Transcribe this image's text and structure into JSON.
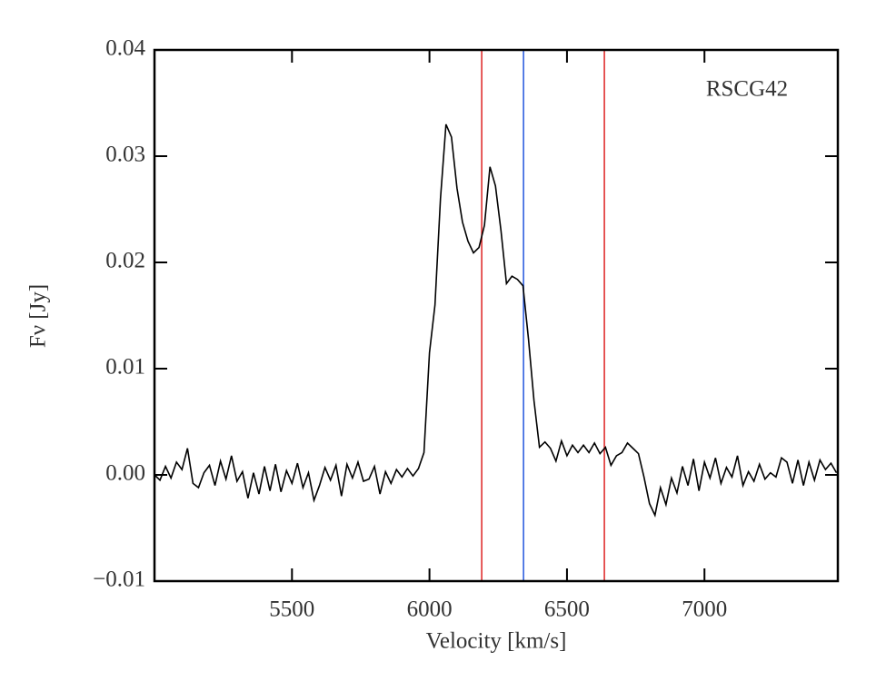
{
  "chart_data": {
    "type": "line",
    "annotation": "RSCG42",
    "x_label": "Velocity [km/s]",
    "y_label": "Fν [Jy]",
    "xlim": [
      5000,
      7485
    ],
    "ylim": [
      -0.01,
      0.04
    ],
    "xticks": [
      5500,
      6000,
      6500,
      7000
    ],
    "yticks": [
      {
        "value": -0.01,
        "label": "−0.01"
      },
      {
        "value": 0,
        "label": "0.00"
      },
      {
        "value": 0.01,
        "label": "0.01"
      },
      {
        "value": 0.02,
        "label": "0.02"
      },
      {
        "value": 0.03,
        "label": "0.03"
      },
      {
        "value": 0.04,
        "label": "0.04"
      }
    ],
    "x": [
      5000,
      5020,
      5040,
      5060,
      5080,
      5100,
      5120,
      5140,
      5160,
      5180,
      5200,
      5220,
      5240,
      5260,
      5280,
      5300,
      5320,
      5340,
      5360,
      5380,
      5400,
      5420,
      5440,
      5460,
      5480,
      5500,
      5520,
      5540,
      5560,
      5580,
      5600,
      5620,
      5640,
      5660,
      5680,
      5700,
      5720,
      5740,
      5760,
      5780,
      5800,
      5820,
      5840,
      5860,
      5880,
      5900,
      5920,
      5940,
      5960,
      5980,
      6000,
      6020,
      6040,
      6060,
      6080,
      6100,
      6120,
      6140,
      6160,
      6180,
      6200,
      6220,
      6240,
      6260,
      6280,
      6300,
      6320,
      6340,
      6360,
      6380,
      6400,
      6420,
      6440,
      6460,
      6480,
      6500,
      6520,
      6540,
      6560,
      6580,
      6600,
      6620,
      6640,
      6660,
      6680,
      6700,
      6720,
      6740,
      6760,
      6780,
      6800,
      6820,
      6840,
      6860,
      6880,
      6900,
      6920,
      6940,
      6960,
      6980,
      7000,
      7020,
      7040,
      7060,
      7080,
      7100,
      7120,
      7140,
      7160,
      7180,
      7200,
      7220,
      7240,
      7260,
      7280,
      7300,
      7320,
      7340,
      7360,
      7380,
      7400,
      7420,
      7440,
      7460,
      7480
    ],
    "series": [
      {
        "color": "#000000",
        "values": [
          0.0,
          -0.0005,
          0.0008,
          -0.0003,
          0.0012,
          0.0005,
          0.0025,
          -0.0008,
          -0.0012,
          0.0002,
          0.0009,
          -0.001,
          0.0013,
          -0.0004,
          0.0018,
          -0.0006,
          0.0003,
          -0.0022,
          0.0002,
          -0.0018,
          0.0008,
          -0.0015,
          0.001,
          -0.0016,
          0.0004,
          -0.0008,
          0.0011,
          -0.0012,
          0.0002,
          -0.0024,
          -0.001,
          0.0007,
          -0.0005,
          0.0009,
          -0.002,
          0.001,
          -0.0003,
          0.0012,
          -0.0006,
          -0.0004,
          0.0008,
          -0.0018,
          0.0003,
          -0.0008,
          0.0005,
          -0.0002,
          0.0006,
          -0.0001,
          0.0006,
          0.0021,
          0.0115,
          0.016,
          0.026,
          0.033,
          0.0318,
          0.027,
          0.0238,
          0.022,
          0.0209,
          0.0214,
          0.0235,
          0.029,
          0.0272,
          0.023,
          0.018,
          0.0187,
          0.0184,
          0.0178,
          0.0128,
          0.007,
          0.0026,
          0.0031,
          0.0025,
          0.0013,
          0.0032,
          0.0018,
          0.0028,
          0.0021,
          0.0028,
          0.0021,
          0.003,
          0.002,
          0.0026,
          0.0009,
          0.0018,
          0.0021,
          0.003,
          0.0025,
          0.002,
          -0.0002,
          -0.0027,
          -0.0038,
          -0.0012,
          -0.0028,
          -0.0003,
          -0.0017,
          0.0008,
          -0.001,
          0.0015,
          -0.0015,
          0.0012,
          -0.0003,
          0.0016,
          -0.0008,
          0.0007,
          -0.0002,
          0.0018,
          -0.001,
          0.0003,
          -0.0006,
          0.001,
          -0.0004,
          0.0002,
          -0.0002,
          0.0016,
          0.0012,
          -0.0008,
          0.0014,
          -0.001,
          0.0012,
          -0.0005,
          0.0014,
          0.0005,
          0.0011,
          0.0002
        ]
      }
    ],
    "vlines": [
      {
        "x": 6190,
        "color": "#e03030"
      },
      {
        "x": 6342,
        "color": "#3060e0"
      },
      {
        "x": 6636,
        "color": "#e03030"
      }
    ]
  }
}
